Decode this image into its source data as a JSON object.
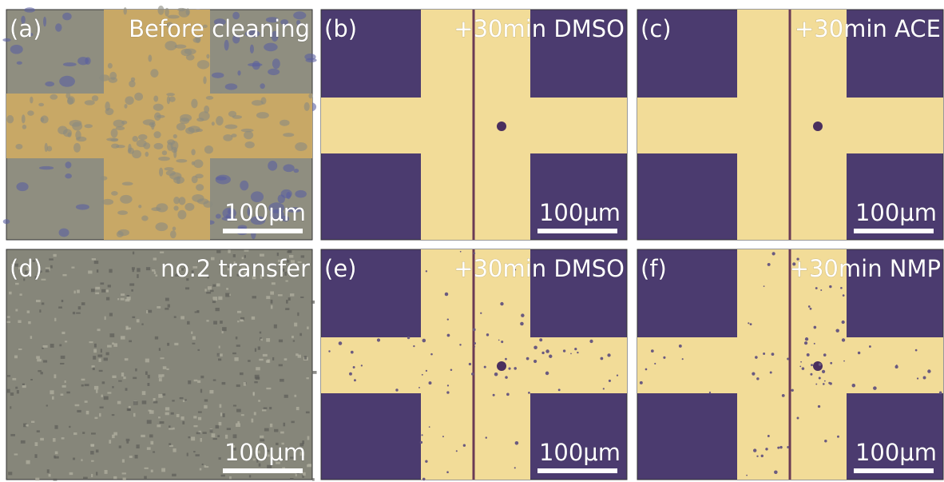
{
  "panels": [
    {
      "label": "(a)",
      "title": "Before cleaning",
      "scale_bar": "100μm"
    },
    {
      "label": "(b)",
      "title": "+30min DMSO",
      "scale_bar": "100μm"
    },
    {
      "label": "(c)",
      "title": "+30min ACE",
      "scale_bar": "100μm"
    },
    {
      "label": "(d)",
      "title": "no.2 transfer",
      "scale_bar": "100μm"
    },
    {
      "label": "(e)",
      "title": "+30min DMSO",
      "scale_bar": "100μm"
    },
    {
      "label": "(f)",
      "title": "+30min NMP",
      "scale_bar": "100μm"
    }
  ]
}
